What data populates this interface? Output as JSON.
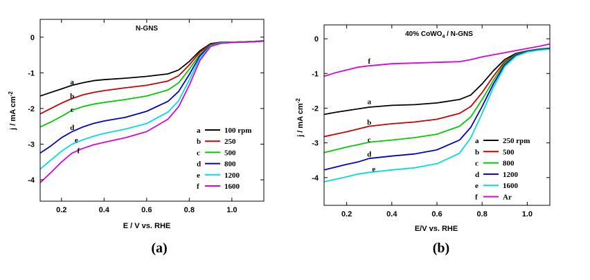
{
  "chart_data": [
    {
      "type": "line",
      "panel_label": "(a)",
      "title": "N-GNS",
      "xlabel": "E / V vs. RHE",
      "ylabel": "j / mA cm",
      "ylabel_sup": "-2",
      "xlim": [
        0.1,
        1.15
      ],
      "ylim": [
        -4.6,
        0.5
      ],
      "xticks": [
        0.2,
        0.4,
        0.6,
        0.8,
        1.0
      ],
      "xtick_labels": [
        "0.2",
        "0.4",
        "0.6",
        "0.8",
        "1.0"
      ],
      "yticks": [
        0,
        -1,
        -2,
        -3,
        -4
      ],
      "ytick_labels": [
        "0",
        "-1",
        "-2",
        "-3",
        "-4"
      ],
      "legend_position": "bottom-right",
      "series": [
        {
          "key": "a",
          "name": "100 rpm",
          "color": "#000000",
          "label_at": [
            0.25,
            -1.32
          ],
          "x": [
            0.1,
            0.15,
            0.2,
            0.25,
            0.3,
            0.35,
            0.4,
            0.5,
            0.6,
            0.7,
            0.75,
            0.8,
            0.85,
            0.9,
            0.95,
            1.0,
            1.05,
            1.1,
            1.15
          ],
          "y": [
            -1.65,
            -1.55,
            -1.45,
            -1.35,
            -1.28,
            -1.22,
            -1.19,
            -1.15,
            -1.1,
            -1.03,
            -0.92,
            -0.68,
            -0.38,
            -0.18,
            -0.14,
            -0.14,
            -0.13,
            -0.12,
            -0.1
          ]
        },
        {
          "key": "b",
          "name": "250",
          "color": "#cc0000",
          "label_at": [
            0.25,
            -1.72
          ],
          "x": [
            0.1,
            0.15,
            0.2,
            0.25,
            0.3,
            0.35,
            0.4,
            0.5,
            0.6,
            0.7,
            0.75,
            0.8,
            0.85,
            0.9,
            0.95,
            1.0,
            1.05,
            1.1,
            1.15
          ],
          "y": [
            -2.15,
            -2.0,
            -1.85,
            -1.72,
            -1.62,
            -1.55,
            -1.5,
            -1.42,
            -1.35,
            -1.23,
            -1.08,
            -0.78,
            -0.42,
            -0.2,
            -0.15,
            -0.14,
            -0.13,
            -0.12,
            -0.1
          ]
        },
        {
          "key": "c",
          "name": "500",
          "color": "#00cc00",
          "label_at": [
            0.25,
            -2.1
          ],
          "x": [
            0.1,
            0.15,
            0.2,
            0.25,
            0.3,
            0.35,
            0.4,
            0.5,
            0.6,
            0.7,
            0.75,
            0.8,
            0.85,
            0.9,
            0.95,
            1.0,
            1.05,
            1.1,
            1.15
          ],
          "y": [
            -2.52,
            -2.38,
            -2.22,
            -2.05,
            -1.95,
            -1.88,
            -1.83,
            -1.75,
            -1.65,
            -1.48,
            -1.28,
            -0.9,
            -0.48,
            -0.22,
            -0.15,
            -0.14,
            -0.13,
            -0.12,
            -0.1
          ]
        },
        {
          "key": "d",
          "name": "800",
          "color": "#0000cc",
          "label_at": [
            0.25,
            -2.6
          ],
          "x": [
            0.1,
            0.15,
            0.2,
            0.25,
            0.3,
            0.35,
            0.4,
            0.5,
            0.6,
            0.7,
            0.75,
            0.8,
            0.85,
            0.9,
            0.95,
            1.0,
            1.05,
            1.1,
            1.15
          ],
          "y": [
            -3.25,
            -3.05,
            -2.82,
            -2.65,
            -2.52,
            -2.42,
            -2.35,
            -2.25,
            -2.08,
            -1.8,
            -1.52,
            -1.05,
            -0.52,
            -0.23,
            -0.16,
            -0.15,
            -0.14,
            -0.13,
            -0.11
          ]
        },
        {
          "key": "e",
          "name": "1200",
          "color": "#00dddd",
          "label_at": [
            0.27,
            -2.95
          ],
          "x": [
            0.1,
            0.15,
            0.2,
            0.25,
            0.3,
            0.35,
            0.4,
            0.5,
            0.6,
            0.7,
            0.75,
            0.8,
            0.85,
            0.9,
            0.95,
            1.0,
            1.05,
            1.1,
            1.15
          ],
          "y": [
            -3.7,
            -3.45,
            -3.2,
            -3.0,
            -2.88,
            -2.78,
            -2.7,
            -2.58,
            -2.42,
            -2.1,
            -1.78,
            -1.2,
            -0.58,
            -0.24,
            -0.16,
            -0.15,
            -0.14,
            -0.13,
            -0.11
          ]
        },
        {
          "key": "f",
          "name": "1600",
          "color": "#dd00dd",
          "label_at": [
            0.28,
            -3.25
          ],
          "x": [
            0.1,
            0.15,
            0.2,
            0.25,
            0.3,
            0.35,
            0.4,
            0.5,
            0.6,
            0.7,
            0.75,
            0.8,
            0.85,
            0.9,
            0.95,
            1.0,
            1.05,
            1.1,
            1.15
          ],
          "y": [
            -4.08,
            -3.8,
            -3.5,
            -3.25,
            -3.12,
            -3.02,
            -2.95,
            -2.82,
            -2.65,
            -2.3,
            -1.95,
            -1.35,
            -0.65,
            -0.26,
            -0.17,
            -0.15,
            -0.14,
            -0.13,
            -0.11
          ]
        }
      ]
    },
    {
      "type": "line",
      "panel_label": "(b)",
      "title_main": "40% CoWO",
      "title_sub": "4",
      "title_tail": " / N-GNS",
      "xlabel": "E/V vs. RHE",
      "ylabel": "j / mA cm",
      "ylabel_sup": "-2",
      "xlim": [
        0.1,
        1.1
      ],
      "ylim": [
        -4.8,
        0.4
      ],
      "xticks": [
        0.2,
        0.4,
        0.6,
        0.8,
        1.0
      ],
      "xtick_labels": [
        "0.2",
        "0.4",
        "0.6",
        "0.8",
        "1.0"
      ],
      "yticks": [
        0,
        -1,
        -2,
        -3,
        -4
      ],
      "ytick_labels": [
        "0",
        "-1",
        "-2",
        "-3",
        "-4"
      ],
      "legend_position": "bottom-right",
      "series": [
        {
          "key": "a",
          "name": "250 rpm",
          "color": "#000000",
          "label_at": [
            0.3,
            -1.88
          ],
          "x": [
            0.1,
            0.15,
            0.2,
            0.25,
            0.3,
            0.4,
            0.5,
            0.6,
            0.7,
            0.75,
            0.8,
            0.85,
            0.9,
            0.95,
            1.0,
            1.05,
            1.1
          ],
          "y": [
            -2.18,
            -2.12,
            -2.07,
            -2.02,
            -1.97,
            -1.92,
            -1.9,
            -1.85,
            -1.75,
            -1.62,
            -1.3,
            -0.92,
            -0.6,
            -0.42,
            -0.35,
            -0.3,
            -0.27
          ]
        },
        {
          "key": "b",
          "name": "500",
          "color": "#cc0000",
          "label_at": [
            0.3,
            -2.48
          ],
          "x": [
            0.1,
            0.15,
            0.2,
            0.25,
            0.3,
            0.4,
            0.5,
            0.6,
            0.7,
            0.75,
            0.8,
            0.85,
            0.9,
            0.95,
            1.0,
            1.05,
            1.1
          ],
          "y": [
            -2.82,
            -2.75,
            -2.68,
            -2.6,
            -2.52,
            -2.45,
            -2.4,
            -2.32,
            -2.15,
            -1.95,
            -1.55,
            -1.08,
            -0.66,
            -0.44,
            -0.36,
            -0.31,
            -0.28
          ]
        },
        {
          "key": "c",
          "name": "800",
          "color": "#00cc00",
          "label_at": [
            0.3,
            -2.98
          ],
          "x": [
            0.1,
            0.15,
            0.2,
            0.25,
            0.3,
            0.4,
            0.5,
            0.6,
            0.7,
            0.75,
            0.8,
            0.85,
            0.9,
            0.95,
            1.0,
            1.05,
            1.1
          ],
          "y": [
            -3.28,
            -3.2,
            -3.12,
            -3.05,
            -2.98,
            -2.92,
            -2.85,
            -2.75,
            -2.52,
            -2.25,
            -1.75,
            -1.2,
            -0.7,
            -0.45,
            -0.36,
            -0.31,
            -0.28
          ]
        },
        {
          "key": "d",
          "name": "1200",
          "color": "#0000cc",
          "label_at": [
            0.3,
            -3.4
          ],
          "x": [
            0.1,
            0.15,
            0.2,
            0.25,
            0.3,
            0.4,
            0.5,
            0.6,
            0.7,
            0.75,
            0.8,
            0.85,
            0.9,
            0.95,
            1.0,
            1.05,
            1.1
          ],
          "y": [
            -3.78,
            -3.7,
            -3.62,
            -3.55,
            -3.45,
            -3.38,
            -3.32,
            -3.2,
            -2.92,
            -2.55,
            -1.95,
            -1.3,
            -0.75,
            -0.47,
            -0.37,
            -0.32,
            -0.29
          ]
        },
        {
          "key": "e",
          "name": "1600",
          "color": "#00dddd",
          "label_at": [
            0.32,
            -3.82
          ],
          "x": [
            0.1,
            0.15,
            0.2,
            0.25,
            0.3,
            0.4,
            0.5,
            0.6,
            0.7,
            0.75,
            0.8,
            0.85,
            0.9,
            0.95,
            1.0,
            1.05,
            1.1
          ],
          "y": [
            -4.12,
            -4.05,
            -3.98,
            -3.9,
            -3.85,
            -3.78,
            -3.72,
            -3.6,
            -3.3,
            -2.85,
            -2.15,
            -1.4,
            -0.8,
            -0.5,
            -0.38,
            -0.33,
            -0.3
          ]
        },
        {
          "key": "f",
          "name": "Ar",
          "color": "#dd00dd",
          "label_at": [
            0.3,
            -0.72
          ],
          "x": [
            0.1,
            0.15,
            0.2,
            0.25,
            0.3,
            0.4,
            0.5,
            0.6,
            0.7,
            0.75,
            0.8,
            0.85,
            0.9,
            0.95,
            1.0,
            1.05,
            1.1
          ],
          "y": [
            -1.08,
            -0.98,
            -0.9,
            -0.82,
            -0.78,
            -0.72,
            -0.7,
            -0.68,
            -0.66,
            -0.6,
            -0.52,
            -0.46,
            -0.4,
            -0.34,
            -0.28,
            -0.22,
            -0.15
          ]
        }
      ]
    }
  ]
}
